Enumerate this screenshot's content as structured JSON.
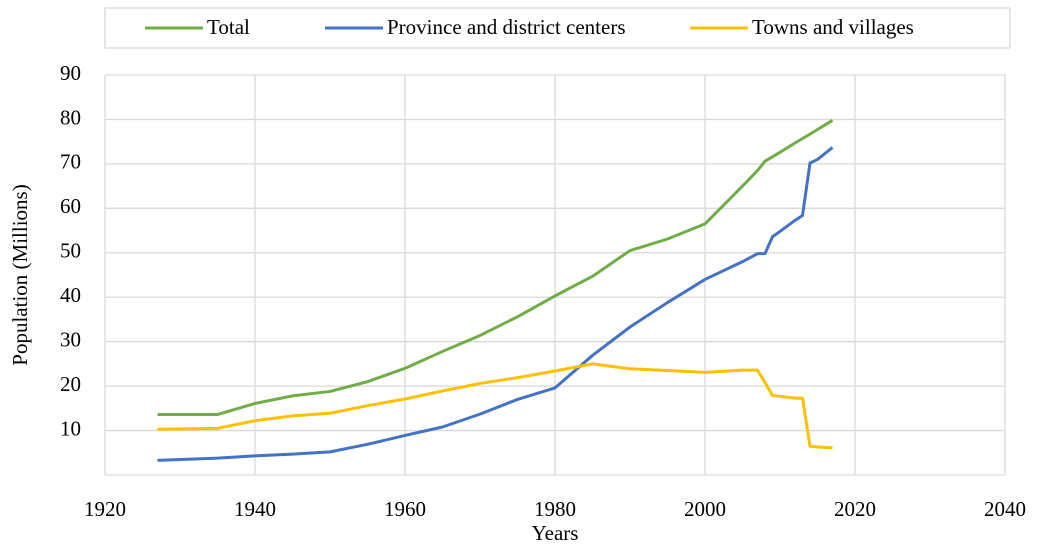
{
  "chart_data": {
    "type": "line",
    "xlabel": "Years",
    "ylabel": "Population (Millions)",
    "xlim": [
      1920,
      2040
    ],
    "xticks": [
      1920,
      1940,
      1960,
      1980,
      2000,
      2020,
      2040
    ],
    "ylim": [
      0,
      90
    ],
    "yticks": [
      10,
      20,
      30,
      40,
      50,
      60,
      70,
      80,
      90
    ],
    "grid": true,
    "legend": "top",
    "series": [
      {
        "name": "Total",
        "color": "#70ad47",
        "x": [
          1927,
          1935,
          1940,
          1945,
          1950,
          1955,
          1960,
          1965,
          1970,
          1975,
          1980,
          1985,
          1990,
          1995,
          2000,
          2005,
          2007,
          2008,
          2010,
          2012,
          2014,
          2017
        ],
        "values": [
          13.6,
          13.6,
          16.1,
          17.8,
          18.8,
          21,
          24,
          27.8,
          31.4,
          35.6,
          40.3,
          44.7,
          50.5,
          53.1,
          56.5,
          65,
          68.5,
          70.6,
          72.6,
          74.7,
          76.7,
          79.8
        ]
      },
      {
        "name": "Province and district centers",
        "color": "#4472c4",
        "x": [
          1927,
          1935,
          1940,
          1945,
          1950,
          1955,
          1960,
          1965,
          1970,
          1975,
          1980,
          1985,
          1990,
          1995,
          2000,
          2005,
          2007,
          2008,
          2009,
          2010,
          2012,
          2013,
          2014,
          2015,
          2017
        ],
        "values": [
          3.3,
          3.8,
          4.3,
          4.7,
          5.2,
          6.9,
          8.9,
          10.8,
          13.7,
          17,
          19.6,
          26.9,
          33.3,
          38.8,
          44,
          48,
          49.8,
          49.8,
          53.6,
          54.8,
          57.3,
          58.4,
          70.2,
          71,
          73.7
        ]
      },
      {
        "name": "Towns and villages",
        "color": "#ffc000",
        "x": [
          1927,
          1935,
          1940,
          1945,
          1950,
          1955,
          1960,
          1965,
          1970,
          1975,
          1980,
          1985,
          1990,
          1995,
          2000,
          2005,
          2007,
          2008,
          2009,
          2012,
          2013,
          2014,
          2015,
          2017
        ],
        "values": [
          10.3,
          10.5,
          12.2,
          13.3,
          13.9,
          15.6,
          17.1,
          18.9,
          20.6,
          21.9,
          23.4,
          25,
          23.9,
          23.5,
          23.1,
          23.6,
          23.6,
          20.8,
          17.9,
          17.3,
          17.3,
          6.5,
          6.3,
          6.1
        ]
      }
    ]
  }
}
